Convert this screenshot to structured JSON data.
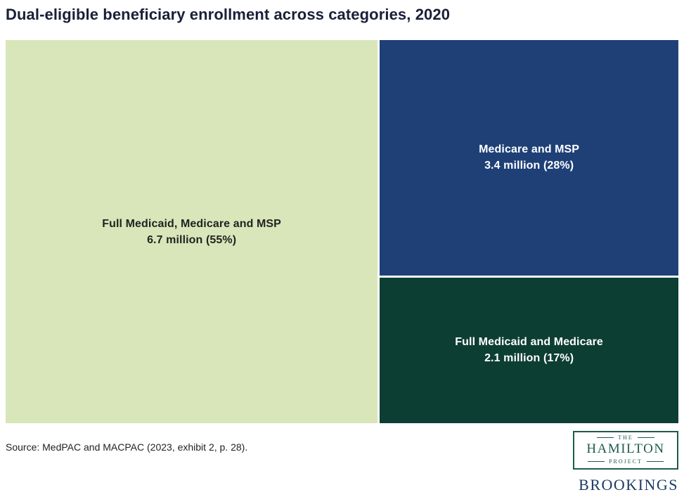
{
  "header": {
    "title": "Dual-eligible beneficiary enrollment across categories, 2020"
  },
  "chart_data": {
    "type": "treemap",
    "title": "Dual-eligible beneficiary enrollment across categories, 2020",
    "unit": "million beneficiaries",
    "segments": [
      {
        "label": "Full Medicaid, Medicare and MSP",
        "value_label": "6.7 million (55%)",
        "value_millions": 6.7,
        "percent": 55,
        "color": "#d8e6ba",
        "text_color": "#222222"
      },
      {
        "label": "Medicare and MSP",
        "value_label": "3.4 million (28%)",
        "value_millions": 3.4,
        "percent": 28,
        "color": "#1e4077",
        "text_color": "#ffffff"
      },
      {
        "label": "Full Medicaid and Medicare",
        "value_label": "2.1 million (17%)",
        "value_millions": 2.1,
        "percent": 17,
        "color": "#0d3e33",
        "text_color": "#ffffff"
      }
    ],
    "layout": "left tile full height 55% width; right column split vertically 28% over 17%",
    "legend_position": "none",
    "grid": false
  },
  "footer": {
    "source": "Source:  MedPAC and MACPAC (2023, exhibit 2, p. 28)."
  },
  "logos": {
    "hamilton": {
      "the": "THE",
      "name": "HAMILTON",
      "project": "PROJECT",
      "color": "#1e5b4c"
    },
    "brookings": {
      "wordmark": "BROOKINGS",
      "color": "#1d3a63"
    }
  }
}
